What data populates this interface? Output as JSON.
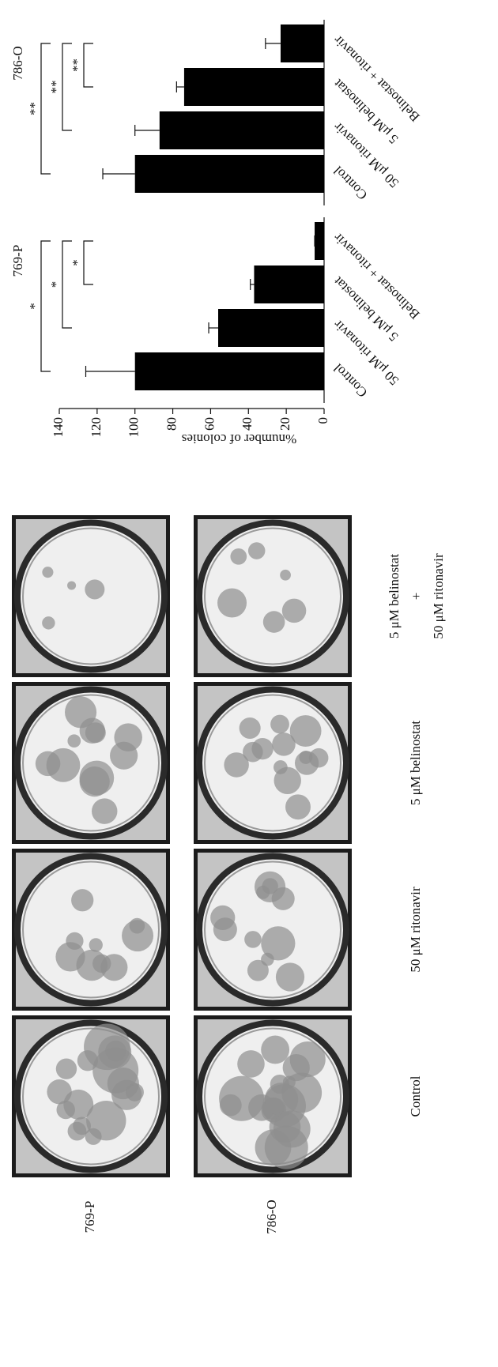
{
  "photos": {
    "row_labels": [
      "769-P",
      "786-O"
    ],
    "column_labels": [
      "Control",
      "50 μM ritonavir",
      "5 μM belinostat",
      [
        "5 μM belinostat",
        "+",
        "50 μM ritonavir"
      ]
    ]
  },
  "chart_data": [
    {
      "type": "bar",
      "title": "769-P",
      "y_label": "%number of colonies",
      "categories": [
        "Control",
        "50 μM ritonavir",
        "5 μM belinostat",
        "Belinostat + ritonavir"
      ],
      "values": [
        100,
        56,
        37,
        5
      ],
      "errors": [
        26,
        5,
        2,
        0
      ],
      "color": "#000000",
      "ylim": [
        0,
        140
      ],
      "yticks": [
        0,
        20,
        40,
        60,
        80,
        100,
        120,
        140
      ],
      "brackets": [
        {
          "from": 0,
          "to": 3,
          "label": "*"
        },
        {
          "from": 1,
          "to": 3,
          "label": "*"
        },
        {
          "from": 2,
          "to": 3,
          "label": "*"
        }
      ]
    },
    {
      "type": "bar",
      "title": "786-O",
      "categories": [
        "Control",
        "50 μM ritonavir",
        "5 μM belinostat",
        "Belinostat + ritonavir"
      ],
      "values": [
        100,
        87,
        74,
        23
      ],
      "errors": [
        17,
        13,
        4,
        8
      ],
      "color": "#000000",
      "ylim": [
        0,
        140
      ],
      "brackets": [
        {
          "from": 0,
          "to": 3,
          "label": "**"
        },
        {
          "from": 1,
          "to": 3,
          "label": "**"
        },
        {
          "from": 2,
          "to": 3,
          "label": "**"
        }
      ]
    }
  ]
}
